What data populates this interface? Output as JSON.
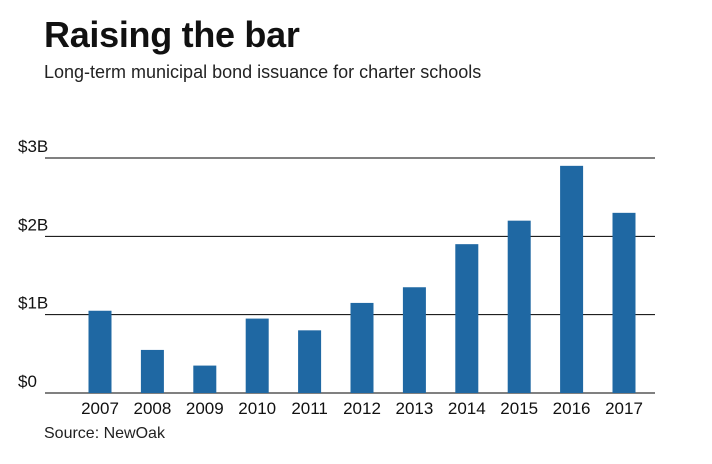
{
  "chart_data": {
    "type": "bar",
    "title": "Raising the bar",
    "subtitle": "Long-term municipal bond issuance for charter schools",
    "source": "Source: NewOak",
    "categories": [
      "2007",
      "2008",
      "2009",
      "2010",
      "2011",
      "2012",
      "2013",
      "2014",
      "2015",
      "2016",
      "2017"
    ],
    "values": [
      1.05,
      0.55,
      0.35,
      0.95,
      0.8,
      1.15,
      1.35,
      1.9,
      2.2,
      2.9,
      2.3
    ],
    "yunit": "$B",
    "ylim": [
      0,
      3
    ],
    "yticks": [
      {
        "value": 0,
        "label": "$0"
      },
      {
        "value": 1,
        "label": "$1B"
      },
      {
        "value": 2,
        "label": "$2B"
      },
      {
        "value": 3,
        "label": "$3B"
      }
    ],
    "bar_color": "#1f68a3",
    "gridline_color": "#000000",
    "grid": true,
    "xlabel": "",
    "ylabel": ""
  }
}
